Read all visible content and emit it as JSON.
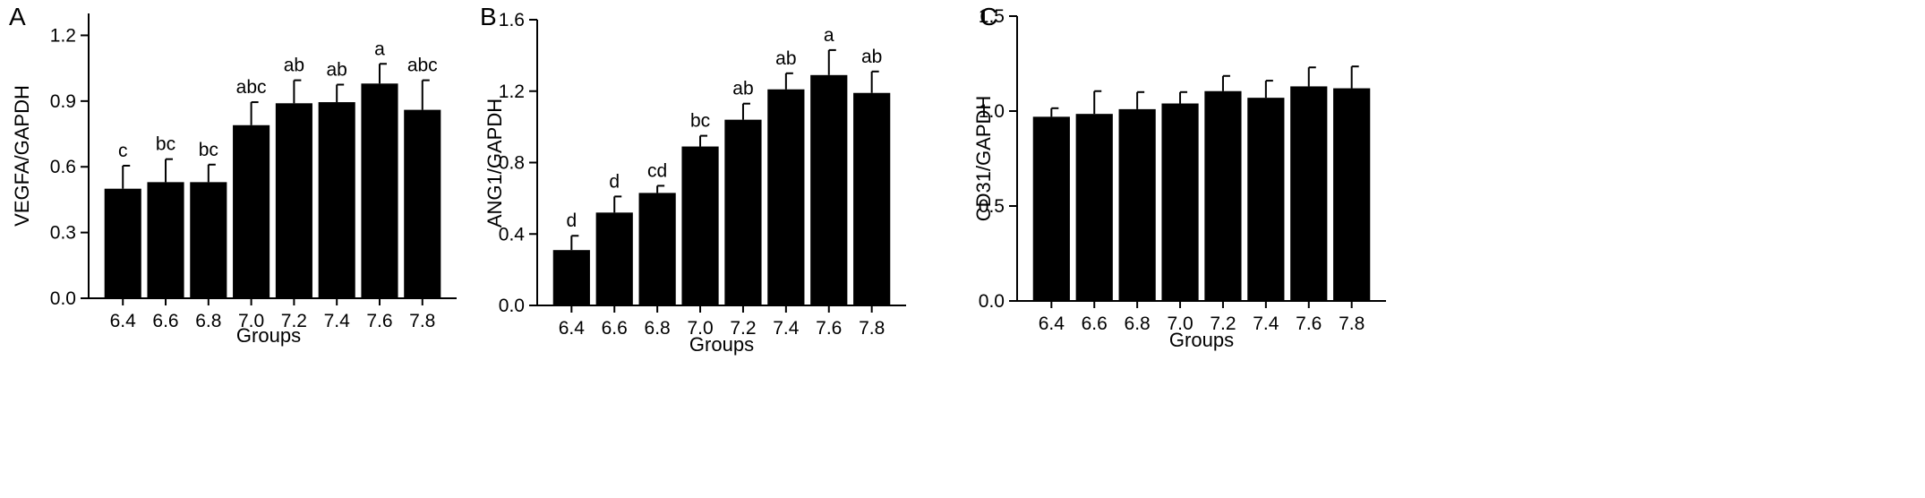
{
  "chart_data": [
    {
      "type": "bar",
      "panel": "A",
      "categories": [
        "6.4",
        "6.6",
        "6.8",
        "7.0",
        "7.2",
        "7.4",
        "7.6",
        "7.8"
      ],
      "values": [
        0.5,
        0.53,
        0.53,
        0.79,
        0.89,
        0.895,
        0.98,
        0.86
      ],
      "errors": [
        0.105,
        0.105,
        0.08,
        0.105,
        0.105,
        0.08,
        0.09,
        0.135
      ],
      "labels": [
        "c",
        "bc",
        "bc",
        "abc",
        "ab",
        "ab",
        "a",
        "abc"
      ],
      "xlabel": "Groups",
      "ylabel": "VEGFA/GAPDH",
      "ylim": [
        0,
        1.3
      ],
      "yticks": [
        "0.0",
        "0.3",
        "0.6",
        "0.9",
        "1.2"
      ],
      "bar_color": "#000000"
    },
    {
      "type": "bar",
      "panel": "B",
      "categories": [
        "6.4",
        "6.6",
        "6.8",
        "7.0",
        "7.2",
        "7.4",
        "7.6",
        "7.8"
      ],
      "values": [
        0.31,
        0.52,
        0.63,
        0.89,
        1.04,
        1.21,
        1.29,
        1.19
      ],
      "errors": [
        0.08,
        0.09,
        0.04,
        0.06,
        0.09,
        0.09,
        0.14,
        0.12
      ],
      "labels": [
        "d",
        "d",
        "cd",
        "bc",
        "ab",
        "ab",
        "a",
        "ab"
      ],
      "xlabel": "Groups",
      "ylabel": "ANG1/GAPDH",
      "ylim": [
        0,
        1.6
      ],
      "yticks": [
        "0.0",
        "0.4",
        "0.8",
        "1.2",
        "1.6"
      ],
      "bar_color": "#000000"
    },
    {
      "type": "bar",
      "panel": "C",
      "categories": [
        "6.4",
        "6.6",
        "6.8",
        "7.0",
        "7.2",
        "7.4",
        "7.6",
        "7.8"
      ],
      "values": [
        0.97,
        0.985,
        1.01,
        1.04,
        1.105,
        1.07,
        1.13,
        1.12
      ],
      "errors": [
        0.045,
        0.12,
        0.09,
        0.06,
        0.08,
        0.09,
        0.1,
        0.115
      ],
      "labels": [],
      "xlabel": "Groups",
      "ylabel": "CD31/GAPDH",
      "ylim": [
        0,
        1.5
      ],
      "yticks": [
        "0.0",
        "0.5",
        "1.0",
        "1.5"
      ],
      "bar_color": "#000000"
    }
  ]
}
